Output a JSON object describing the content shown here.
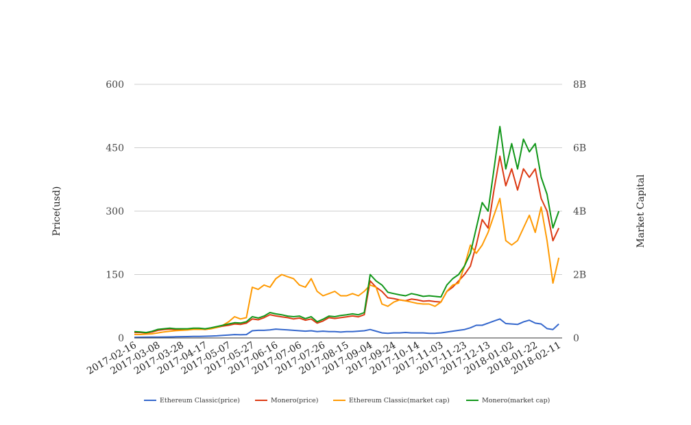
{
  "chart_data": {
    "type": "line",
    "title": "",
    "xlabel": "",
    "ylabel": "Price(usd)",
    "y2label": "Market Capital",
    "ylim": [
      0,
      600
    ],
    "y2lim": [
      0,
      8
    ],
    "yticks": [
      "0",
      "150",
      "300",
      "450",
      "600"
    ],
    "y2ticks": [
      "0",
      "2B",
      "4B",
      "6B",
      "8B"
    ],
    "xticks": [
      "2017-02-16",
      "2017-03-08",
      "2017-03-28",
      "2017-04-17",
      "2017-05-07",
      "2017-05-27",
      "2017-06-16",
      "2017-07-06",
      "2017-07-26",
      "2017-08-15",
      "2017-09-04",
      "2017-09-24",
      "2017-10-14",
      "2017-11-03",
      "2017-11-23",
      "2017-12-13",
      "2018-01-02",
      "2018-01-22",
      "2018-02-11"
    ],
    "x_start": "2017-02-16",
    "x_step_days": 5,
    "grid": true,
    "legend_position": "bottom",
    "series": [
      {
        "name": "Ethereum Classic(price)",
        "axis": "left",
        "color": "#3366cc",
        "values": [
          1.5,
          1.6,
          1.8,
          1.9,
          2,
          2.2,
          2.5,
          2.7,
          3,
          3.2,
          3.5,
          3.8,
          4,
          4.5,
          5,
          6,
          7,
          8,
          7.5,
          8,
          17,
          18,
          18,
          19,
          21,
          20,
          19,
          18,
          17,
          16,
          17,
          15,
          16,
          15,
          15,
          14,
          15,
          15,
          16,
          17,
          20,
          16,
          12,
          11,
          12,
          12,
          13,
          12,
          12,
          12,
          11,
          11,
          12,
          14,
          16,
          18,
          20,
          24,
          30,
          30,
          35,
          40,
          45,
          34,
          33,
          32,
          38,
          42,
          35,
          33,
          22,
          20,
          33
        ]
      },
      {
        "name": "Monero(price)",
        "axis": "left",
        "color": "#dc3912",
        "values": [
          13,
          13,
          12,
          14,
          18,
          20,
          21,
          20,
          20,
          20,
          21,
          21,
          20,
          22,
          25,
          28,
          30,
          33,
          32,
          35,
          45,
          43,
          48,
          55,
          52,
          50,
          48,
          45,
          47,
          42,
          45,
          35,
          40,
          48,
          46,
          48,
          50,
          52,
          50,
          55,
          135,
          120,
          110,
          95,
          93,
          90,
          88,
          92,
          90,
          87,
          88,
          86,
          85,
          110,
          120,
          135,
          150,
          170,
          220,
          280,
          260,
          350,
          430,
          360,
          400,
          350,
          400,
          380,
          400,
          330,
          300,
          230,
          260
        ]
      },
      {
        "name": "Ethereum Classic(market cap)",
        "axis": "right",
        "color": "#ff9900",
        "values": [
          0.11,
          0.11,
          0.12,
          0.13,
          0.16,
          0.19,
          0.21,
          0.23,
          0.24,
          0.25,
          0.27,
          0.27,
          0.27,
          0.29,
          0.33,
          0.4,
          0.51,
          0.67,
          0.6,
          0.64,
          1.6,
          1.53,
          1.67,
          1.6,
          1.87,
          2.0,
          1.93,
          1.87,
          1.67,
          1.6,
          1.87,
          1.47,
          1.33,
          1.4,
          1.47,
          1.33,
          1.33,
          1.4,
          1.33,
          1.47,
          1.67,
          1.6,
          1.07,
          1.0,
          1.13,
          1.2,
          1.17,
          1.13,
          1.09,
          1.07,
          1.07,
          1.0,
          1.13,
          1.47,
          1.67,
          1.73,
          2.27,
          2.93,
          2.67,
          2.93,
          3.33,
          3.87,
          4.4,
          3.07,
          2.93,
          3.07,
          3.47,
          3.87,
          3.33,
          4.13,
          3.07,
          1.73,
          2.53
        ]
      },
      {
        "name": "Monero(market cap)",
        "axis": "right",
        "color": "#109618",
        "values": [
          0.2,
          0.19,
          0.17,
          0.21,
          0.27,
          0.29,
          0.31,
          0.29,
          0.29,
          0.29,
          0.31,
          0.31,
          0.29,
          0.32,
          0.36,
          0.4,
          0.44,
          0.48,
          0.47,
          0.51,
          0.67,
          0.63,
          0.69,
          0.8,
          0.76,
          0.73,
          0.69,
          0.67,
          0.69,
          0.61,
          0.67,
          0.51,
          0.59,
          0.69,
          0.67,
          0.71,
          0.73,
          0.76,
          0.73,
          0.8,
          2.0,
          1.8,
          1.67,
          1.44,
          1.4,
          1.36,
          1.33,
          1.4,
          1.36,
          1.31,
          1.33,
          1.31,
          1.29,
          1.67,
          1.87,
          2.0,
          2.27,
          2.67,
          3.47,
          4.27,
          4.0,
          5.33,
          6.67,
          5.33,
          6.13,
          5.33,
          6.27,
          5.87,
          6.13,
          5.07,
          4.53,
          3.47,
          4.0
        ]
      }
    ]
  }
}
